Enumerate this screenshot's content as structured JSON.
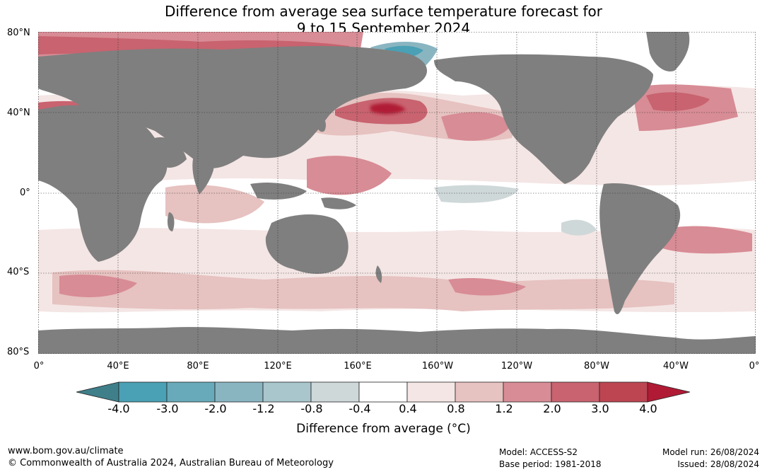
{
  "title": {
    "line1": "Difference from average sea surface temperature forecast for",
    "line2": "9 to 15 September 2024"
  },
  "map": {
    "lat_labels": [
      "80°N",
      "40°N",
      "0°",
      "40°S",
      "80°S"
    ],
    "lon_labels": [
      "0°",
      "40°E",
      "80°E",
      "120°E",
      "160°E",
      "160°W",
      "120°W",
      "80°W",
      "40°W",
      "0°"
    ],
    "land_color": "#7f7f7f",
    "ocean_base_color": "#ffffff"
  },
  "legend": {
    "title": "Difference from average (°C)",
    "tick_labels": [
      "-4.0",
      "-3.0",
      "-2.0",
      "-1.2",
      "-0.8",
      "-0.4",
      "0.4",
      "0.8",
      "1.2",
      "2.0",
      "3.0",
      "4.0"
    ],
    "colors": [
      "#3f7f8a",
      "#4aa0b4",
      "#68aab9",
      "#89b5c1",
      "#a8c6cb",
      "#cfd8d9",
      "#ffffff",
      "#f4e6e5",
      "#e6c2c0",
      "#d88c95",
      "#c8636f",
      "#bd4552",
      "#b01a35"
    ]
  },
  "footer": {
    "url": "www.bom.gov.au/climate",
    "copyright": "© Commonwealth of Australia 2024, Australian Bureau of Meteorology",
    "model": "Model: ACCESS-S2",
    "base_period": "Base period: 1981-2018",
    "model_run": "Model run: 26/08/2024",
    "issued": "Issued: 28/08/2024"
  }
}
